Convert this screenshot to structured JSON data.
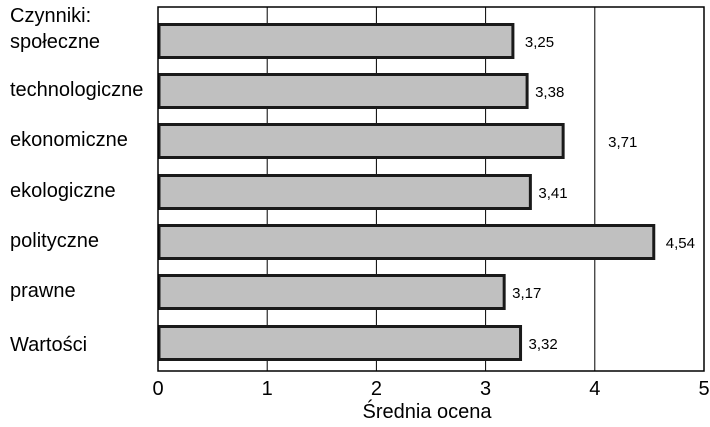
{
  "chart_data": {
    "type": "bar",
    "orientation": "horizontal",
    "categories_title": "Czynniki:",
    "categories": [
      "społeczne",
      "technologiczne",
      "ekonomiczne",
      "ekologiczne",
      "polityczne",
      "prawne",
      "Wartości"
    ],
    "values": [
      3.25,
      3.38,
      3.71,
      3.41,
      4.54,
      3.17,
      3.32
    ],
    "value_labels": [
      "3,25",
      "3,38",
      "3,71",
      "3,41",
      "4,54",
      "3,17",
      "3,32"
    ],
    "xlabel": "Średnia ocena",
    "xlim": [
      0,
      5
    ],
    "xticks": [
      0,
      1,
      2,
      3,
      4,
      5
    ],
    "xtick_labels": [
      "0",
      "1",
      "2",
      "3",
      "4",
      "5"
    ],
    "grid": "vertical",
    "bar_color": "#c0c0c0",
    "bar_edge_color": "#1a1a1a"
  }
}
